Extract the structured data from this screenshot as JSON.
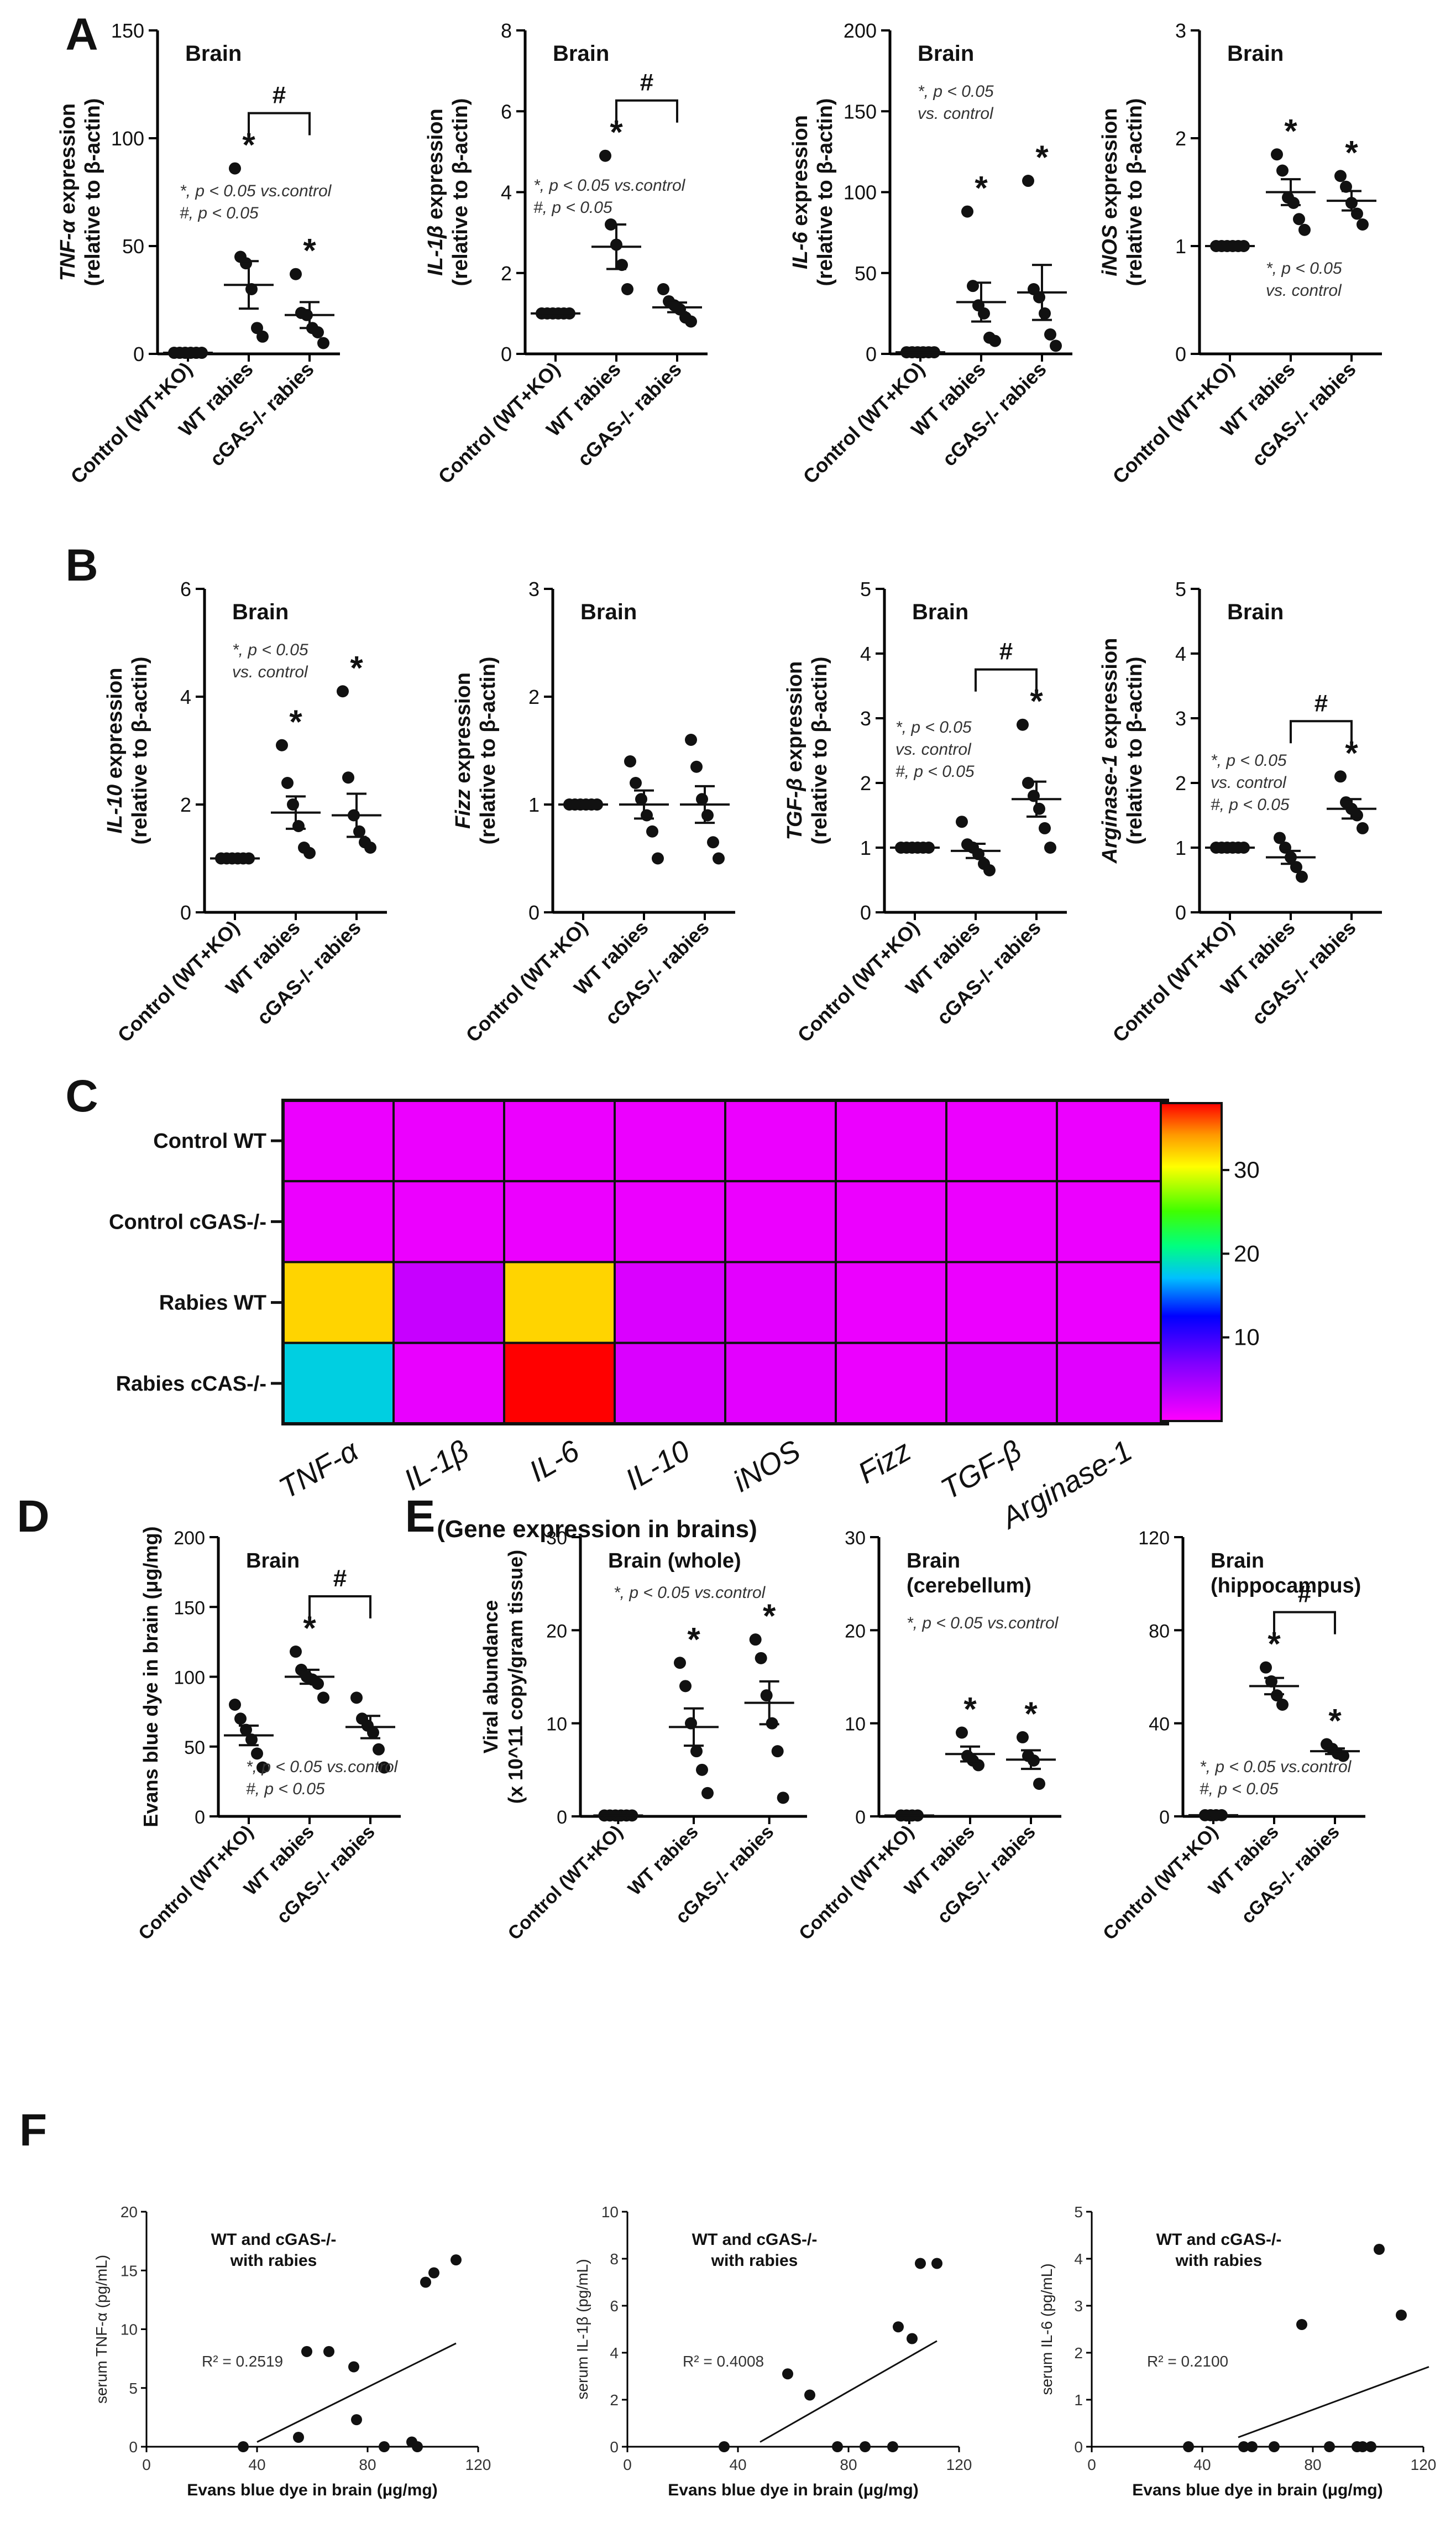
{
  "figure": {
    "panel_letters": [
      "A",
      "B",
      "C",
      "D",
      "E",
      "F"
    ]
  },
  "chart_data": [
    {
      "id": "A1",
      "type": "scatter",
      "title": "Brain",
      "ylabel_gene": "TNF-α",
      "ylabel_rest": " expression",
      "ylabel_line2": "(relative to β-actin)",
      "ylim": [
        0,
        150
      ],
      "yticks": [
        "0",
        "50",
        "100",
        "150"
      ],
      "categories": [
        "Control (WT+KO)",
        "WT rabies",
        "cGAS-/- rabies"
      ],
      "points": [
        [
          0.5,
          0.5,
          0.5,
          0.5,
          0.5,
          0.5
        ],
        [
          86,
          45,
          42,
          30,
          12,
          8
        ],
        [
          37,
          19,
          18,
          12,
          10,
          5
        ]
      ],
      "means": [
        0.5,
        32,
        18
      ],
      "sem": [
        0,
        11,
        6
      ],
      "stars": [
        false,
        true,
        true
      ],
      "hash_bracket": [
        1,
        2
      ],
      "annotation": [
        "*, p < 0.05 vs.control",
        "#, p < 0.05"
      ]
    },
    {
      "id": "A2",
      "type": "scatter",
      "title": "Brain",
      "ylabel_gene": "IL-1β",
      "ylabel_rest": " expression",
      "ylabel_line2": "(relative to β-actin)",
      "ylim": [
        0,
        8
      ],
      "yticks": [
        "0",
        "2",
        "4",
        "6",
        "8"
      ],
      "categories": [
        "Control (WT+KO)",
        "WT rabies",
        "cGAS-/- rabies"
      ],
      "points": [
        [
          1,
          1,
          1,
          1,
          1,
          1
        ],
        [
          4.9,
          3.2,
          2.7,
          2.2,
          1.6
        ],
        [
          1.6,
          1.3,
          1.2,
          1.1,
          0.9,
          0.8
        ]
      ],
      "means": [
        1,
        2.65,
        1.15
      ],
      "sem": [
        0,
        0.55,
        0.12
      ],
      "stars": [
        false,
        true,
        false
      ],
      "hash_bracket": [
        1,
        2
      ],
      "annotation": [
        "*, p < 0.05 vs.control",
        "#, p < 0.05"
      ]
    },
    {
      "id": "A3",
      "type": "scatter",
      "title": "Brain",
      "ylabel_gene": "IL-6",
      "ylabel_rest": " expression",
      "ylabel_line2": "(relative to β-actin)",
      "ylim": [
        0,
        200
      ],
      "yticks": [
        "0",
        "50",
        "100",
        "150",
        "200"
      ],
      "categories": [
        "Control (WT+KO)",
        "WT rabies",
        "cGAS-/- rabies"
      ],
      "points": [
        [
          1,
          1,
          1,
          1,
          1,
          1
        ],
        [
          88,
          42,
          30,
          25,
          10,
          8
        ],
        [
          107,
          40,
          35,
          25,
          12,
          5
        ]
      ],
      "means": [
        1,
        32,
        38
      ],
      "sem": [
        0,
        12,
        17
      ],
      "stars": [
        false,
        true,
        true
      ],
      "hash_bracket": null,
      "annotation": [
        "*, p < 0.05",
        "vs. control"
      ]
    },
    {
      "id": "A4",
      "type": "scatter",
      "title": "Brain",
      "ylabel_gene": "iNOS",
      "ylabel_rest": " expression",
      "ylabel_line2": "(relative to β-actin)",
      "ylim": [
        0,
        3
      ],
      "yticks": [
        "0",
        "1",
        "2",
        "3"
      ],
      "categories": [
        "Control (WT+KO)",
        "WT rabies",
        "cGAS-/- rabies"
      ],
      "points": [
        [
          1,
          1,
          1,
          1,
          1,
          1
        ],
        [
          1.85,
          1.7,
          1.45,
          1.4,
          1.25,
          1.15
        ],
        [
          1.65,
          1.55,
          1.4,
          1.3,
          1.2
        ]
      ],
      "means": [
        1,
        1.5,
        1.42
      ],
      "sem": [
        0,
        0.12,
        0.09
      ],
      "stars": [
        false,
        true,
        true
      ],
      "hash_bracket": null,
      "annotation": [
        "*, p < 0.05",
        "vs. control"
      ]
    },
    {
      "id": "B1",
      "type": "scatter",
      "title": "Brain",
      "ylabel_gene": "IL-10",
      "ylabel_rest": " expression",
      "ylabel_line2": "(relative to β-actin)",
      "ylim": [
        0,
        6
      ],
      "yticks": [
        "0",
        "2",
        "4",
        "6"
      ],
      "categories": [
        "Control (WT+KO)",
        "WT rabies",
        "cGAS-/- rabies"
      ],
      "points": [
        [
          1,
          1,
          1,
          1,
          1,
          1
        ],
        [
          3.1,
          2.4,
          2.0,
          1.6,
          1.2,
          1.1
        ],
        [
          4.1,
          2.5,
          1.8,
          1.5,
          1.3,
          1.2
        ]
      ],
      "means": [
        1,
        1.85,
        1.8
      ],
      "sem": [
        0,
        0.3,
        0.4
      ],
      "stars": [
        false,
        true,
        true
      ],
      "hash_bracket": null,
      "annotation": [
        "*, p < 0.05",
        "vs. control"
      ]
    },
    {
      "id": "B2",
      "type": "scatter",
      "title": "Brain",
      "ylabel_gene": "Fizz",
      "ylabel_rest": " expression",
      "ylabel_line2": "(relative to β-actin)",
      "ylim": [
        0,
        3
      ],
      "yticks": [
        "0",
        "1",
        "2",
        "3"
      ],
      "categories": [
        "Control (WT+KO)",
        "WT rabies",
        "cGAS-/- rabies"
      ],
      "points": [
        [
          1,
          1,
          1,
          1,
          1,
          1
        ],
        [
          1.4,
          1.2,
          1.05,
          0.9,
          0.75,
          0.5
        ],
        [
          1.6,
          1.35,
          1.05,
          0.9,
          0.65,
          0.5
        ]
      ],
      "means": [
        1,
        1.0,
        1.0
      ],
      "sem": [
        0,
        0.13,
        0.17
      ],
      "stars": [
        false,
        false,
        false
      ],
      "hash_bracket": null,
      "annotation": []
    },
    {
      "id": "B3",
      "type": "scatter",
      "title": "Brain",
      "ylabel_gene": "TGF-β",
      "ylabel_rest": " expression",
      "ylabel_line2": "(relative to β-actin)",
      "ylim": [
        0,
        5
      ],
      "yticks": [
        "0",
        "1",
        "2",
        "3",
        "4",
        "5"
      ],
      "categories": [
        "Control (WT+KO)",
        "WT rabies",
        "cGAS-/- rabies"
      ],
      "points": [
        [
          1,
          1,
          1,
          1,
          1,
          1
        ],
        [
          1.4,
          1.05,
          1.0,
          0.9,
          0.75,
          0.65
        ],
        [
          2.9,
          2.0,
          1.8,
          1.6,
          1.3,
          1.0
        ]
      ],
      "means": [
        1,
        0.95,
        1.75
      ],
      "sem": [
        0,
        0.11,
        0.27
      ],
      "stars": [
        false,
        false,
        true
      ],
      "hash_bracket": [
        1,
        2
      ],
      "annotation": [
        "*, p < 0.05",
        "vs. control",
        "#, p < 0.05"
      ]
    },
    {
      "id": "B4",
      "type": "scatter",
      "title": "Brain",
      "ylabel_gene": "Arginase-1",
      "ylabel_rest": " expression",
      "ylabel_line2": "(relative to β-actin)",
      "ylim": [
        0,
        5
      ],
      "yticks": [
        "0",
        "1",
        "2",
        "3",
        "4",
        "5"
      ],
      "categories": [
        "Control (WT+KO)",
        "WT rabies",
        "cGAS-/- rabies"
      ],
      "points": [
        [
          1,
          1,
          1,
          1,
          1,
          1
        ],
        [
          1.15,
          1.0,
          0.85,
          0.7,
          0.55
        ],
        [
          2.1,
          1.7,
          1.6,
          1.5,
          1.3
        ]
      ],
      "means": [
        1,
        0.85,
        1.6
      ],
      "sem": [
        0,
        0.1,
        0.15
      ],
      "stars": [
        false,
        false,
        true
      ],
      "hash_bracket": [
        1,
        2
      ],
      "annotation": [
        "*, p < 0.05",
        "vs. control",
        "#, p < 0.05"
      ]
    },
    {
      "id": "C",
      "type": "heatmap",
      "rows": [
        "Control WT",
        "Control cGAS-/-",
        "Rabies WT",
        "Rabies cCAS-/-"
      ],
      "columns": [
        "TNF-α",
        "IL-1β",
        "IL-6",
        "IL-10",
        "iNOS",
        "Fizz",
        "TGF-β",
        "Arginase-1"
      ],
      "values": [
        [
          1,
          1,
          1,
          1,
          1,
          1,
          1,
          1
        ],
        [
          1,
          1,
          1,
          1,
          1,
          1,
          1,
          1
        ],
        [
          32,
          3,
          32,
          2,
          1.5,
          1,
          1,
          1
        ],
        [
          18,
          1.2,
          38,
          2,
          1.5,
          1,
          1.8,
          1.6
        ]
      ],
      "xlabel": "(Gene expression in brains)",
      "colorbar_ticks": [
        "10",
        "20",
        "30"
      ],
      "colorbar_range": [
        0,
        38
      ]
    },
    {
      "id": "D",
      "type": "scatter",
      "title": "Brain",
      "ylabel": "Evans blue dye in brain (μg/mg)",
      "ylim": [
        0,
        200
      ],
      "yticks": [
        "0",
        "50",
        "100",
        "150",
        "200"
      ],
      "categories": [
        "Control (WT+KO)",
        "WT rabies",
        "cGAS-/- rabies"
      ],
      "points": [
        [
          80,
          70,
          62,
          55,
          45,
          35
        ],
        [
          118,
          105,
          100,
          98,
          95,
          85
        ],
        [
          85,
          70,
          65,
          60,
          48,
          35
        ]
      ],
      "means": [
        58,
        100,
        64
      ],
      "sem": [
        7,
        5,
        8
      ],
      "stars": [
        false,
        true,
        false
      ],
      "hash_bracket": [
        1,
        2
      ],
      "annotation": [
        "*, p < 0.05 vs.control",
        "#, p < 0.05"
      ]
    },
    {
      "id": "E1",
      "type": "scatter",
      "title": "Brain (whole)",
      "ylabel": "Viral abundance",
      "ylabel_line2": "(x 10^11 copy/gram tissue)",
      "ylim": [
        0,
        30
      ],
      "yticks": [
        "0",
        "10",
        "20",
        "30"
      ],
      "categories": [
        "Control (WT+KO)",
        "WT rabies",
        "cGAS-/- rabies"
      ],
      "points": [
        [
          0.1,
          0.1,
          0.1,
          0.1,
          0.1,
          0.1
        ],
        [
          16.5,
          14,
          10,
          7,
          5,
          2.5
        ],
        [
          19,
          17,
          13,
          10,
          7,
          2
        ]
      ],
      "means": [
        0.1,
        9.6,
        12.2
      ],
      "sem": [
        0,
        2.0,
        2.3
      ],
      "stars": [
        false,
        true,
        true
      ],
      "hash_bracket": null,
      "annotation": [
        "*, p < 0.05 vs.control"
      ]
    },
    {
      "id": "E2",
      "type": "scatter",
      "title": "Brain",
      "title_line2": "(cerebellum)",
      "ylim": [
        0,
        30
      ],
      "yticks": [
        "0",
        "10",
        "20",
        "30"
      ],
      "categories": [
        "Control (WT+KO)",
        "WT rabies",
        "cGAS-/- rabies"
      ],
      "points": [
        [
          0.1,
          0.1,
          0.1,
          0.1
        ],
        [
          9,
          6.5,
          6,
          5.5
        ],
        [
          8.5,
          6.5,
          6,
          3.5
        ]
      ],
      "means": [
        0.1,
        6.7,
        6.1
      ],
      "sem": [
        0,
        0.8,
        1.0
      ],
      "stars": [
        false,
        true,
        true
      ],
      "hash_bracket": null,
      "annotation": [
        "*, p < 0.05 vs.control"
      ]
    },
    {
      "id": "E3",
      "type": "scatter",
      "title": "Brain",
      "title_line2": "(hippocampus)",
      "ylim": [
        0,
        120
      ],
      "yticks": [
        "0",
        "40",
        "80",
        "120"
      ],
      "categories": [
        "Control (WT+KO)",
        "WT rabies",
        "cGAS-/- rabies"
      ],
      "points": [
        [
          0.5,
          0.5,
          0.5,
          0.5
        ],
        [
          64,
          58,
          52,
          48
        ],
        [
          31,
          29,
          27,
          26
        ]
      ],
      "means": [
        0.5,
        56,
        28
      ],
      "sem": [
        0,
        3.5,
        1.2
      ],
      "stars": [
        false,
        true,
        true
      ],
      "hash_bracket": [
        1,
        2
      ],
      "annotation": [
        "*, p < 0.05 vs.control",
        "#, p < 0.05"
      ]
    },
    {
      "id": "F1",
      "type": "scatter",
      "title": "WT and cGAS-/-",
      "title_line2": "with rabies",
      "xlabel": "Evans blue dye in brain (μg/mg)",
      "ylabel": "serum TNF-α (pg/mL)",
      "xlim": [
        0,
        120
      ],
      "ylim": [
        0,
        20
      ],
      "xticks": [
        "0",
        "40",
        "80",
        "120"
      ],
      "yticks": [
        "0",
        "5",
        "10",
        "15",
        "20"
      ],
      "x": [
        35,
        55,
        58,
        66,
        75,
        76,
        86,
        96,
        98,
        101,
        104,
        112
      ],
      "y": [
        0,
        0.8,
        8.1,
        8.1,
        6.8,
        2.3,
        0,
        0.4,
        0,
        14,
        14.8,
        15.9
      ],
      "fit_line": [
        [
          40,
          0.4
        ],
        [
          112,
          8.8
        ]
      ],
      "r2_label": "R² = 0.2519"
    },
    {
      "id": "F2",
      "type": "scatter",
      "title": "WT and cGAS-/-",
      "title_line2": "with rabies",
      "xlabel": "Evans blue dye in brain (μg/mg)",
      "ylabel": "serum IL-1β (pg/mL)",
      "xlim": [
        0,
        120
      ],
      "ylim": [
        0,
        10
      ],
      "xticks": [
        "0",
        "40",
        "80",
        "120"
      ],
      "yticks": [
        "0",
        "2",
        "4",
        "6",
        "8",
        "10"
      ],
      "x": [
        35,
        58,
        66,
        76,
        86,
        96,
        98,
        103,
        106,
        112
      ],
      "y": [
        0,
        3.1,
        2.2,
        0,
        0,
        0,
        5.1,
        4.6,
        7.8,
        7.8
      ],
      "fit_line": [
        [
          48,
          0.2
        ],
        [
          112,
          4.5
        ]
      ],
      "r2_label": "R² = 0.4008"
    },
    {
      "id": "F3",
      "type": "scatter",
      "title": "WT and cGAS-/-",
      "title_line2": "with rabies",
      "xlabel": "Evans blue dye in brain (μg/mg)",
      "ylabel": "serum IL-6 (pg/mL)",
      "xlim": [
        0,
        120
      ],
      "ylim": [
        0,
        5
      ],
      "xticks": [
        "0",
        "40",
        "80",
        "120"
      ],
      "yticks": [
        "0",
        "1",
        "2",
        "3",
        "4",
        "5"
      ],
      "x": [
        35,
        55,
        58,
        66,
        76,
        86,
        96,
        98,
        101,
        104,
        112
      ],
      "y": [
        0,
        0,
        0,
        0,
        2.6,
        0,
        0,
        0,
        0,
        4.2,
        2.8
      ],
      "fit_line": [
        [
          53,
          0.2
        ],
        [
          122,
          1.7
        ]
      ],
      "r2_label": "R² = 0.2100"
    }
  ]
}
